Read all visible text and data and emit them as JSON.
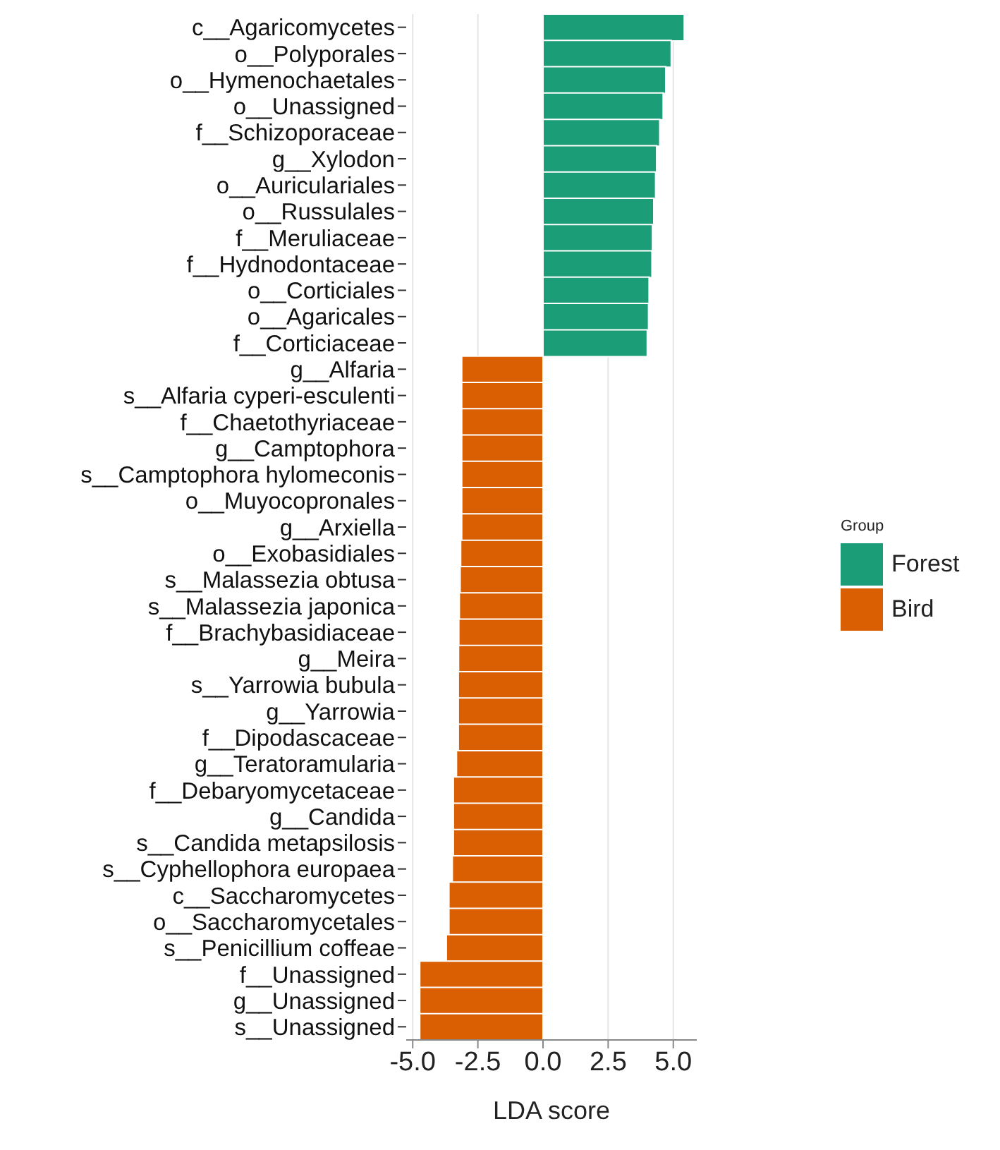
{
  "chart_data": {
    "type": "bar",
    "orientation": "horizontal",
    "stacked": true,
    "xlabel": "LDA score",
    "legend_title": "Group",
    "legend": "right",
    "grid": "x",
    "categories": [
      "c__Agaricomycetes",
      "o__Polyporales",
      "o__Hymenochaetales",
      "o__Unassigned",
      "f__Schizoporaceae",
      "g__Xylodon",
      "o__Auriculariales",
      "o__Russulales",
      "f__Meruliaceae",
      "f__Hydnodontaceae",
      "o__Corticiales",
      "o__Agaricales",
      "f__Corticiaceae",
      "g__Alfaria",
      "s__Alfaria cyperi-esculenti",
      "f__Chaetothyriaceae",
      "g__Camptophora",
      "s__Camptophora hylomeconis",
      "o__Muyocopronales",
      "g__Arxiella",
      "o__Exobasidiales",
      "s__Malassezia obtusa",
      "s__Malassezia japonica",
      "f__Brachybasidiaceae",
      "g__Meira",
      "s__Yarrowia bubula",
      "g__Yarrowia",
      "f__Dipodascaceae",
      "g__Teratoramularia",
      "f__Debaryomycetaceae",
      "g__Candida",
      "s__Candida metapsilosis",
      "s__Cyphellophora europaea",
      "c__Saccharomycetes",
      "o__Saccharomycetales",
      "s__Penicillium coffeae",
      "f__Unassigned",
      "g__Unassigned",
      "s__Unassigned"
    ],
    "series": [
      {
        "name": "Forest",
        "color": "#1b9e77",
        "values": [
          5.42,
          4.92,
          4.71,
          4.61,
          4.48,
          4.36,
          4.32,
          4.25,
          4.2,
          4.18,
          4.07,
          4.05,
          4.0,
          null,
          null,
          null,
          null,
          null,
          null,
          null,
          null,
          null,
          null,
          null,
          null,
          null,
          null,
          null,
          null,
          null,
          null,
          null,
          null,
          null,
          null,
          null,
          null,
          null,
          null
        ]
      },
      {
        "name": "Bird",
        "color": "#d95f02",
        "values": [
          null,
          null,
          null,
          null,
          null,
          null,
          null,
          null,
          null,
          null,
          null,
          null,
          null,
          -3.12,
          -3.12,
          -3.12,
          -3.12,
          -3.12,
          -3.12,
          -3.12,
          -3.16,
          -3.18,
          -3.21,
          -3.23,
          -3.24,
          -3.25,
          -3.25,
          -3.25,
          -3.32,
          -3.44,
          -3.44,
          -3.44,
          -3.48,
          -3.61,
          -3.61,
          -3.71,
          -4.73,
          -4.73,
          -4.73
        ]
      }
    ],
    "xlim": [
      -5.25,
      5.9
    ],
    "xticks": [
      {
        "value": -5,
        "label": "-5.0"
      },
      {
        "value": -2.5,
        "label": "-2.5"
      },
      {
        "value": 0,
        "label": "0.0"
      },
      {
        "value": 2.5,
        "label": "2.5"
      },
      {
        "value": 5,
        "label": "5.0"
      }
    ]
  }
}
